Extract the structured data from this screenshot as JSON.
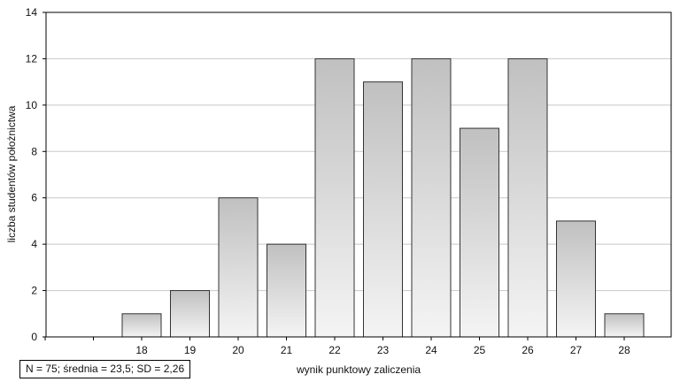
{
  "chart_data": {
    "type": "bar",
    "categories": [
      "18",
      "19",
      "20",
      "21",
      "22",
      "23",
      "24",
      "25",
      "26",
      "27",
      "28"
    ],
    "values": [
      1,
      2,
      6,
      4,
      12,
      11,
      12,
      9,
      12,
      5,
      1
    ],
    "xlabel": "wynik punktowy zaliczenia",
    "ylabel": "liczba studentów położnictwa",
    "ylim": [
      0,
      14
    ],
    "yticks": [
      0,
      2,
      4,
      6,
      8,
      10,
      12,
      14
    ],
    "grid": true,
    "legend": "none",
    "bar_color_top": "#c0c0c0",
    "bar_color_bottom": "#f4f4f4",
    "bar_edge_color": "#333333",
    "gridline_color": "#c8c8c8"
  },
  "stats_text": "N = 75; średnia = 23,5; SD = 2,26"
}
